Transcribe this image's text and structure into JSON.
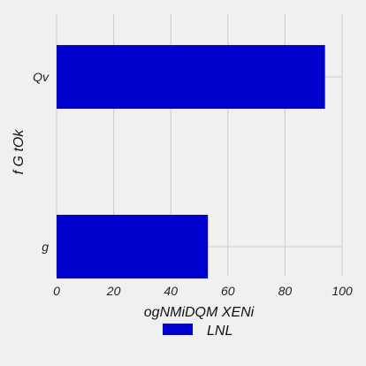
{
  "colors": {
    "background": "#f0f0f0",
    "grid": "#cbcbcb",
    "bar": "#0000cd"
  },
  "chart_data": {
    "type": "bar",
    "orientation": "horizontal",
    "categories": [
      "Qv",
      "g"
    ],
    "series": [
      {
        "name": "LNL",
        "values": [
          94,
          53
        ]
      }
    ],
    "xlabel": "ogNMiDQM XENi",
    "ylabel": "f G tOk",
    "xlim": [
      0,
      100
    ],
    "xticks": [
      0,
      20,
      40,
      60,
      80,
      100
    ],
    "grid": true,
    "legend_position": "bottom"
  }
}
